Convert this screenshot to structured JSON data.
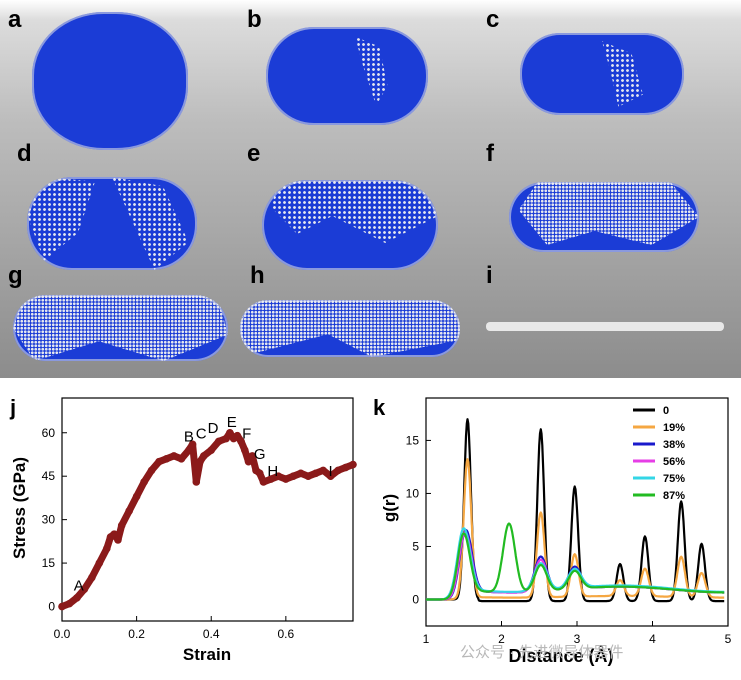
{
  "top_panels": {
    "labels": [
      "a",
      "b",
      "c",
      "d",
      "e",
      "f",
      "g",
      "h",
      "i"
    ]
  },
  "colors": {
    "atom_blue": "#1b3cd6",
    "atom_white": "#f0f0f0",
    "stress_curve": "#8b1a1a"
  },
  "chart_data": [
    {
      "type": "line",
      "panel_label": "j",
      "xlabel": "Strain",
      "ylabel": "Stress (GPa)",
      "xlim": [
        0.0,
        0.78
      ],
      "ylim": [
        -5,
        72
      ],
      "xticks": [
        "0.0",
        "0.2",
        "0.4",
        "0.6"
      ],
      "yticks": [
        "0",
        "15",
        "30",
        "45",
        "60"
      ],
      "series": [
        {
          "x": [
            0,
            0.02,
            0.04,
            0.06,
            0.08,
            0.1,
            0.12,
            0.13,
            0.14,
            0.15,
            0.16,
            0.18,
            0.2,
            0.22,
            0.24,
            0.26,
            0.28,
            0.3,
            0.32,
            0.34,
            0.35,
            0.36,
            0.37,
            0.38,
            0.4,
            0.42,
            0.44,
            0.45,
            0.46,
            0.47,
            0.48,
            0.49,
            0.5,
            0.51,
            0.52,
            0.53,
            0.54,
            0.56,
            0.58,
            0.6,
            0.62,
            0.64,
            0.66,
            0.68,
            0.7,
            0.72,
            0.74,
            0.76,
            0.78
          ],
          "y": [
            0,
            1,
            3,
            6,
            10,
            15,
            20,
            24,
            25,
            23,
            28,
            33,
            38,
            43,
            47,
            50,
            51,
            52,
            51,
            54,
            56,
            43,
            50,
            52,
            54,
            57,
            58,
            60,
            58,
            59,
            57,
            54,
            50,
            52,
            47,
            46,
            43,
            44,
            45,
            44,
            45,
            46,
            45,
            46,
            47,
            45,
            47,
            48,
            49
          ]
        }
      ],
      "point_labels": [
        {
          "text": "A",
          "x": 0.045,
          "y": 5.5
        },
        {
          "text": "B",
          "x": 0.34,
          "y": 57
        },
        {
          "text": "C",
          "x": 0.373,
          "y": 58
        },
        {
          "text": "D",
          "x": 0.405,
          "y": 60
        },
        {
          "text": "E",
          "x": 0.455,
          "y": 62
        },
        {
          "text": "F",
          "x": 0.495,
          "y": 58
        },
        {
          "text": "G",
          "x": 0.53,
          "y": 51
        },
        {
          "text": "H",
          "x": 0.565,
          "y": 45
        },
        {
          "text": "I",
          "x": 0.72,
          "y": 45
        }
      ]
    },
    {
      "type": "line",
      "panel_label": "k",
      "xlabel": "Distance (Å)",
      "ylabel": "g(r)",
      "xlim": [
        1,
        5
      ],
      "ylim": [
        -2.5,
        19
      ],
      "xticks": [
        "1",
        "2",
        "3",
        "4",
        "5"
      ],
      "yticks": [
        "0",
        "5",
        "10",
        "15"
      ],
      "legend_position": "top-right",
      "series": [
        {
          "name": "0",
          "color": "#000000",
          "peaks": [
            [
              1.55,
              17
            ],
            [
              2.52,
              16.2
            ],
            [
              2.97,
              10.8
            ],
            [
              3.57,
              3.5
            ],
            [
              3.9,
              6.1
            ],
            [
              4.38,
              9.4
            ],
            [
              4.65,
              5.4
            ]
          ],
          "width": 0.045,
          "baseline": 0
        },
        {
          "name": "19%",
          "color": "#f5a742",
          "peaks": [
            [
              1.55,
              13
            ],
            [
              2.52,
              8
            ],
            [
              2.97,
              4
            ],
            [
              3.57,
              1.5
            ],
            [
              3.9,
              2.6
            ],
            [
              4.38,
              3.8
            ],
            [
              4.65,
              2.3
            ]
          ],
          "width": 0.05,
          "baseline": 0.3
        },
        {
          "name": "38%",
          "color": "#1a1acc",
          "peaks": [
            [
              1.53,
              5.7
            ],
            [
              2.52,
              3.3
            ],
            [
              2.97,
              2.1
            ]
          ],
          "width": 0.08,
          "baseline": 1.1
        },
        {
          "name": "56%",
          "color": "#e63ee6",
          "peaks": [
            [
              1.52,
              5.5
            ],
            [
              2.52,
              3.0
            ],
            [
              2.97,
              1.9
            ]
          ],
          "width": 0.08,
          "baseline": 1.1
        },
        {
          "name": "75%",
          "color": "#33d6e6",
          "peaks": [
            [
              1.5,
              5.8
            ],
            [
              2.52,
              2.6
            ],
            [
              2.97,
              1.8
            ]
          ],
          "width": 0.085,
          "baseline": 1.2
        },
        {
          "name": "87%",
          "color": "#22bb22",
          "peaks": [
            [
              1.5,
              5.4
            ],
            [
              2.1,
              6.5
            ],
            [
              2.52,
              2.5
            ],
            [
              2.97,
              1.7
            ]
          ],
          "width": 0.08,
          "baseline": 1.1
        }
      ]
    }
  ],
  "watermark": "公众号 · 先进微导体器件"
}
